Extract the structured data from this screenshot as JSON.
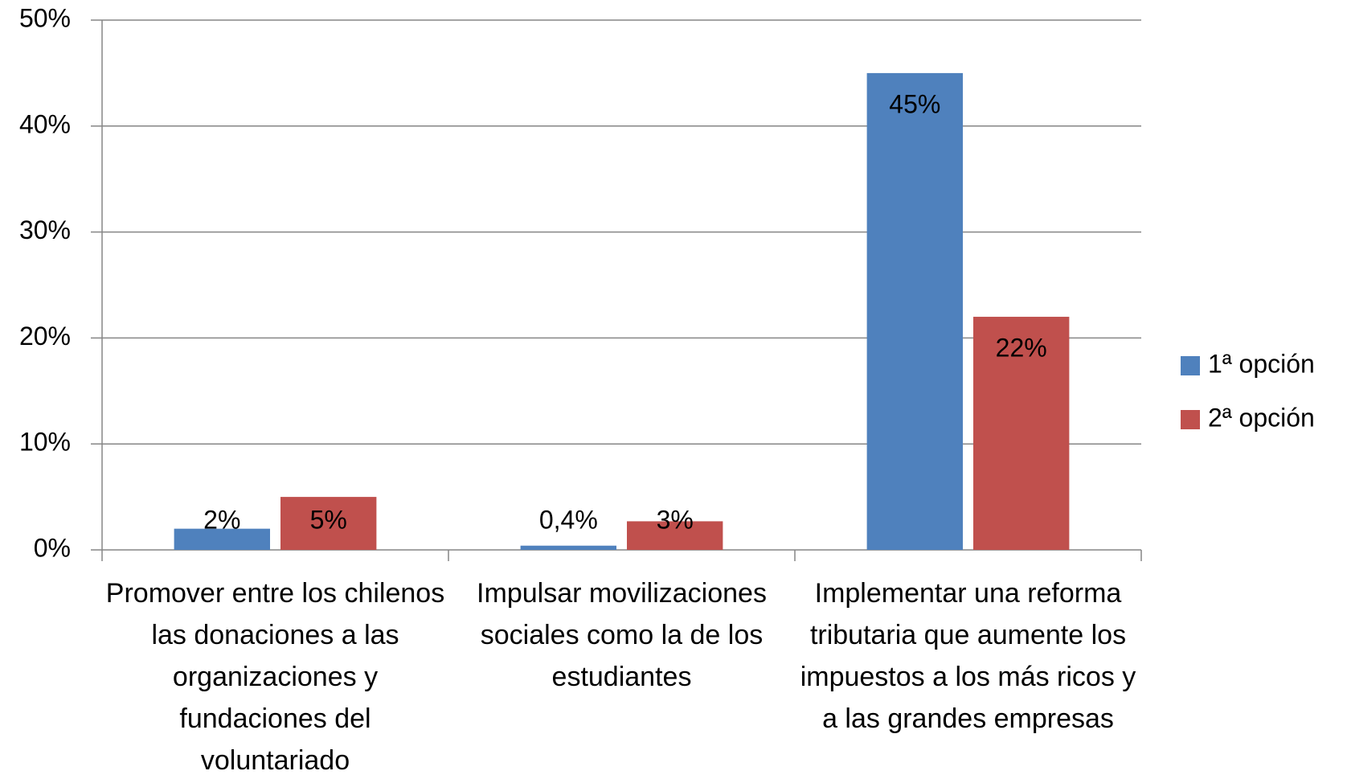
{
  "chart_data": {
    "type": "bar",
    "categories": [
      "Promover entre los chilenos las donaciones a las organizaciones y fundaciones del voluntariado",
      "Impulsar movilizaciones sociales como la de los estudiantes",
      "Implementar una reforma tributaria que aumente los impuestos a los más ricos y a las grandes empresas"
    ],
    "series": [
      {
        "name": "1ª opción",
        "color": "#4f81bd",
        "values": [
          2,
          0.4,
          45
        ],
        "value_labels": [
          "2%",
          "0,4%",
          "45%"
        ]
      },
      {
        "name": "2ª opción",
        "color": "#c0504d",
        "values": [
          5,
          2.7,
          22
        ],
        "value_labels": [
          "5%",
          "3%",
          "22%"
        ]
      }
    ],
    "ylim": [
      0,
      50
    ],
    "yticks": [
      {
        "value": 0,
        "label": "0%"
      },
      {
        "value": 10,
        "label": "10%"
      },
      {
        "value": 20,
        "label": "20%"
      },
      {
        "value": 30,
        "label": "30%"
      },
      {
        "value": 40,
        "label": "40%"
      },
      {
        "value": 50,
        "label": "50%"
      }
    ],
    "grid": true,
    "legend": "right"
  }
}
